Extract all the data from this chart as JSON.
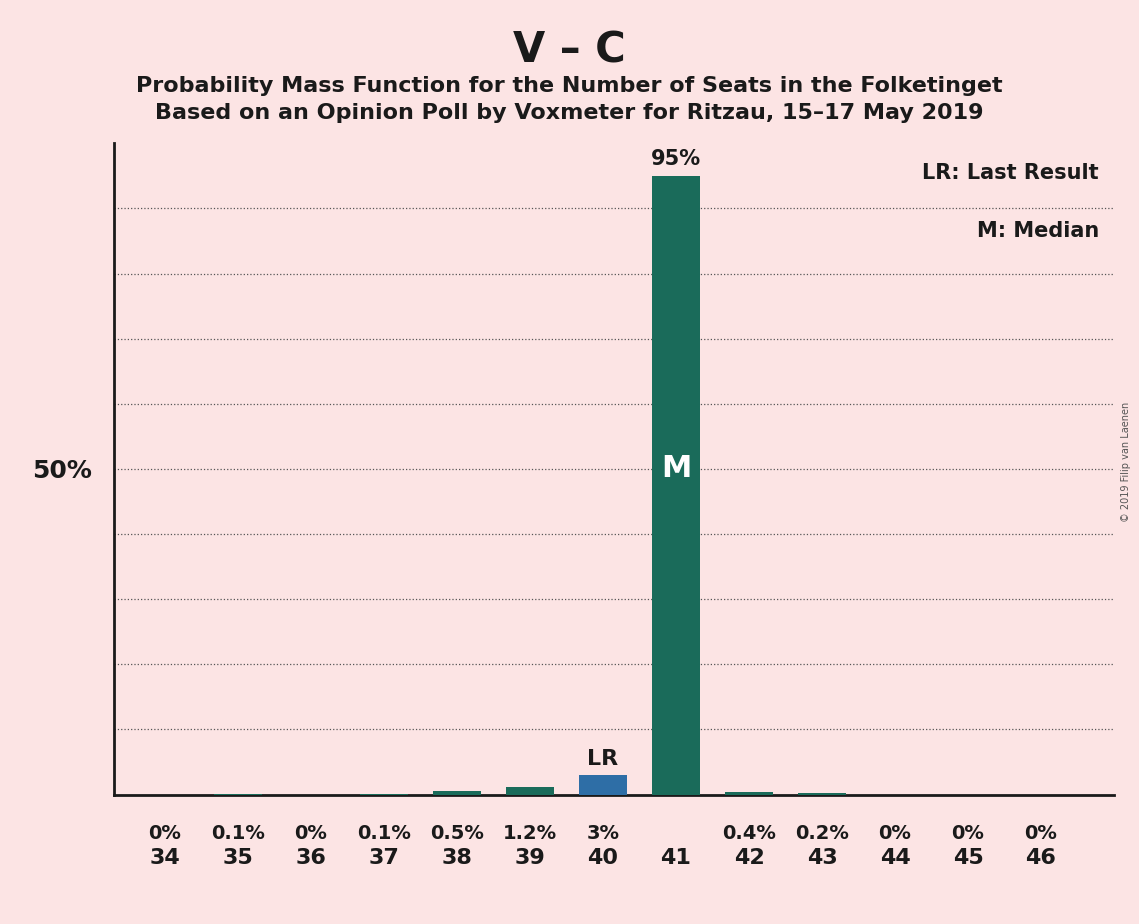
{
  "title_main": "V – C",
  "title_line1": "Probability Mass Function for the Number of Seats in the Folketinget",
  "title_line2": "Based on an Opinion Poll by Voxmeter for Ritzau, 15–17 May 2019",
  "copyright": "© 2019 Filip van Laenen",
  "seats": [
    34,
    35,
    36,
    37,
    38,
    39,
    40,
    41,
    42,
    43,
    44,
    45,
    46
  ],
  "probabilities": [
    0.0,
    0.1,
    0.0,
    0.1,
    0.5,
    1.2,
    3.0,
    95.0,
    0.4,
    0.2,
    0.0,
    0.0,
    0.0
  ],
  "pct_labels": [
    "0%",
    "0.1%",
    "0%",
    "0.1%",
    "0.5%",
    "1.2%",
    "3%",
    "",
    "0.4%",
    "0.2%",
    "0%",
    "0%",
    "0%"
  ],
  "bar_color": "#1a6b5a",
  "lr_seat": 40,
  "lr_color": "#2e6ea6",
  "median_seat": 41,
  "median_label": "M",
  "lr_label": "LR",
  "median_top_label": "95%",
  "legend_lr": "LR: Last Result",
  "legend_m": "M: Median",
  "background_color": "#fce4e4",
  "bar_width": 0.65,
  "grid_color": "#555555",
  "spine_color": "#1a1a1a",
  "text_color": "#1a1a1a",
  "copyright_color": "#555555"
}
